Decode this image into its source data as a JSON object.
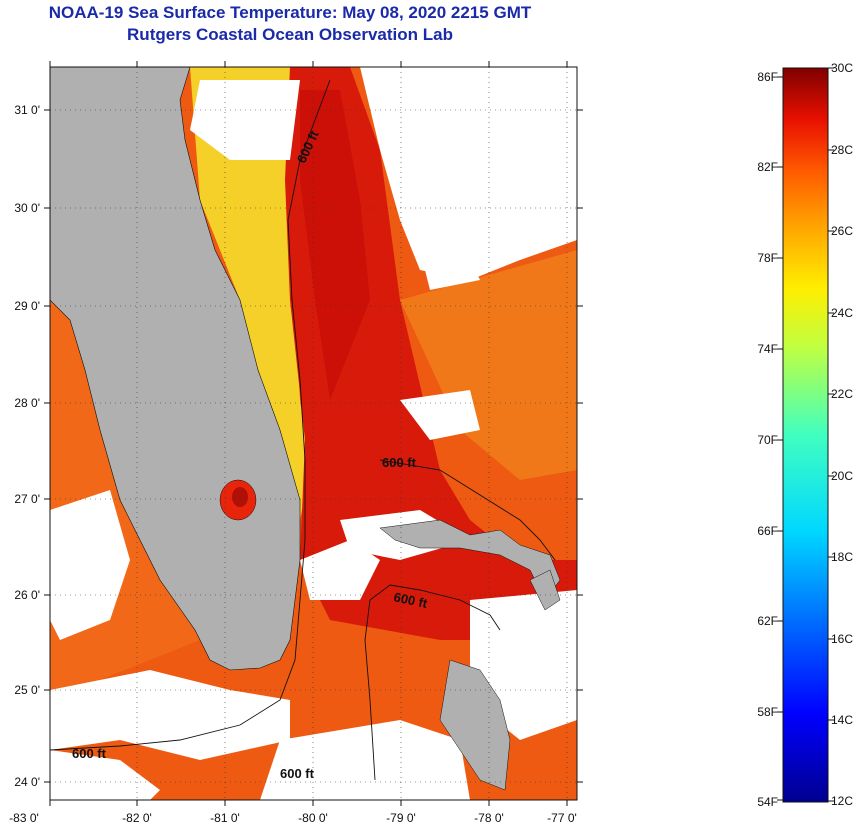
{
  "title": {
    "line1": "NOAA-19 Sea Surface Temperature:  May 08, 2020 2215 GMT",
    "line2": "Rutgers Coastal Ocean Observation Lab"
  },
  "map": {
    "lat_labels": [
      "31 0'",
      "30 0'",
      "29 0'",
      "28 0'",
      "27 0'",
      "26 0'",
      "25 0'",
      "24 0'"
    ],
    "lon_labels": [
      "-83 0'",
      "-82 0'",
      "-81 0'",
      "-80 0'",
      "-79 0'",
      "-78 0'",
      "-77 0'"
    ],
    "contour_labels": [
      "600 ft",
      "600 ft",
      "600 ft",
      "600 ft",
      "600 ft"
    ],
    "colors": {
      "land": "#b0b0b0",
      "cloud": "#ffffff",
      "warm": "#e8240a",
      "hot": "#d01008",
      "orange": "#f26a12",
      "yellow": "#f7e22a"
    }
  },
  "colorbar": {
    "fahrenheit_labels": [
      "86F",
      "82F",
      "78F",
      "74F",
      "70F",
      "66F",
      "62F",
      "58F",
      "54F"
    ],
    "celsius_labels": [
      "30C",
      "28C",
      "26C",
      "24C",
      "22C",
      "20C",
      "18C",
      "16C",
      "14C",
      "12C"
    ]
  }
}
